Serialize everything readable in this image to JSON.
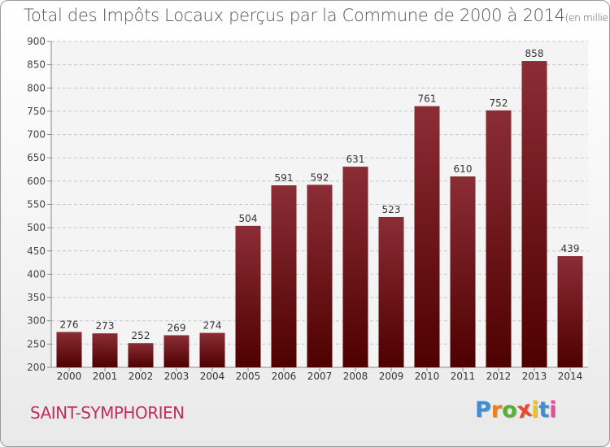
{
  "chart_data": {
    "type": "bar",
    "title": "Total des Impôts Locaux perçus par la Commune de 2000 à 2014",
    "unit": "(en milliers d'€)",
    "categories": [
      "2000",
      "2001",
      "2002",
      "2003",
      "2004",
      "2005",
      "2006",
      "2007",
      "2008",
      "2009",
      "2010",
      "2011",
      "2012",
      "2013",
      "2014"
    ],
    "values": [
      276,
      273,
      252,
      269,
      274,
      504,
      591,
      592,
      631,
      523,
      761,
      610,
      752,
      858,
      439
    ],
    "ylim": [
      200,
      900
    ],
    "yticks": [
      200,
      250,
      300,
      350,
      400,
      450,
      500,
      550,
      600,
      650,
      700,
      750,
      800,
      850,
      900
    ],
    "grid": true,
    "bar_color_top": "#8b2d35",
    "bar_color_bottom": "#4e0000"
  },
  "commune": "SAINT-SYMPHORIEN",
  "logo": {
    "letters": [
      "P",
      "r",
      "o",
      "x",
      "i",
      "t",
      "i"
    ],
    "colors": [
      "#3a8fd8",
      "#f07f1a",
      "#58b030",
      "#e84a2a",
      "#f0c419",
      "#3a8fd8",
      "#e84a9a"
    ]
  }
}
